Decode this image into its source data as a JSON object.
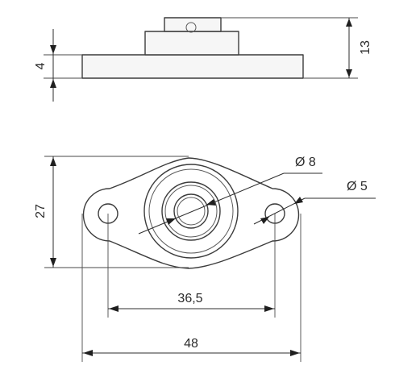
{
  "dimensions": {
    "overall_height": "13",
    "flange_thickness": "4",
    "flange_width": "27",
    "bore_diameter": "Ø 8",
    "hole_diameter": "Ø 5",
    "hole_spacing": "36,5",
    "overall_length": "48"
  },
  "colors": {
    "line": "#3c3c3c",
    "arrow": "#1f1f1f",
    "text": "#2b2b2b",
    "background": "#ffffff"
  }
}
